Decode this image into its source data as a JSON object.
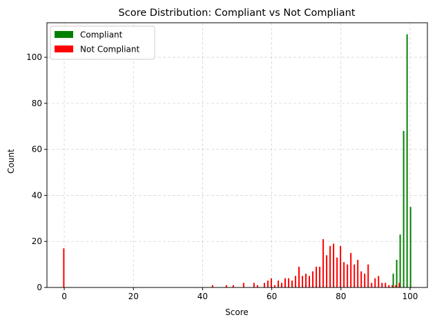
{
  "chart_data": {
    "type": "bar",
    "title": "Score Distribution: Compliant vs Not Compliant",
    "xlabel": "Score",
    "ylabel": "Count",
    "xlim": [
      -5,
      105
    ],
    "ylim": [
      0,
      115
    ],
    "xticks": [
      0,
      20,
      40,
      60,
      80,
      100
    ],
    "yticks": [
      0,
      20,
      40,
      60,
      80,
      100
    ],
    "grid": true,
    "legend_position": "top-left",
    "series": [
      {
        "name": "Compliant",
        "color": "#008000",
        "x": [
          95,
          96,
          97,
          98,
          99,
          100
        ],
        "values": [
          6,
          12,
          23,
          68,
          110,
          35
        ]
      },
      {
        "name": "Not Compliant",
        "color": "#ff0000",
        "x": [
          0,
          43,
          47,
          49,
          52,
          55,
          56,
          58,
          59,
          60,
          61,
          62,
          63,
          64,
          65,
          66,
          67,
          68,
          69,
          70,
          71,
          72,
          73,
          74,
          75,
          76,
          77,
          78,
          79,
          80,
          81,
          82,
          83,
          84,
          85,
          86,
          87,
          88,
          89,
          90,
          91,
          92,
          93,
          94,
          95,
          96,
          97
        ],
        "values": [
          17,
          1,
          1,
          1,
          2,
          2,
          1,
          2,
          3,
          4,
          1,
          3,
          2,
          4,
          4,
          3,
          5,
          9,
          5,
          6,
          5,
          7,
          9,
          9,
          21,
          14,
          18,
          19,
          13,
          18,
          11,
          10,
          15,
          10,
          12,
          7,
          6,
          10,
          2,
          4,
          5,
          2,
          2,
          1,
          1,
          1,
          2
        ]
      }
    ]
  }
}
